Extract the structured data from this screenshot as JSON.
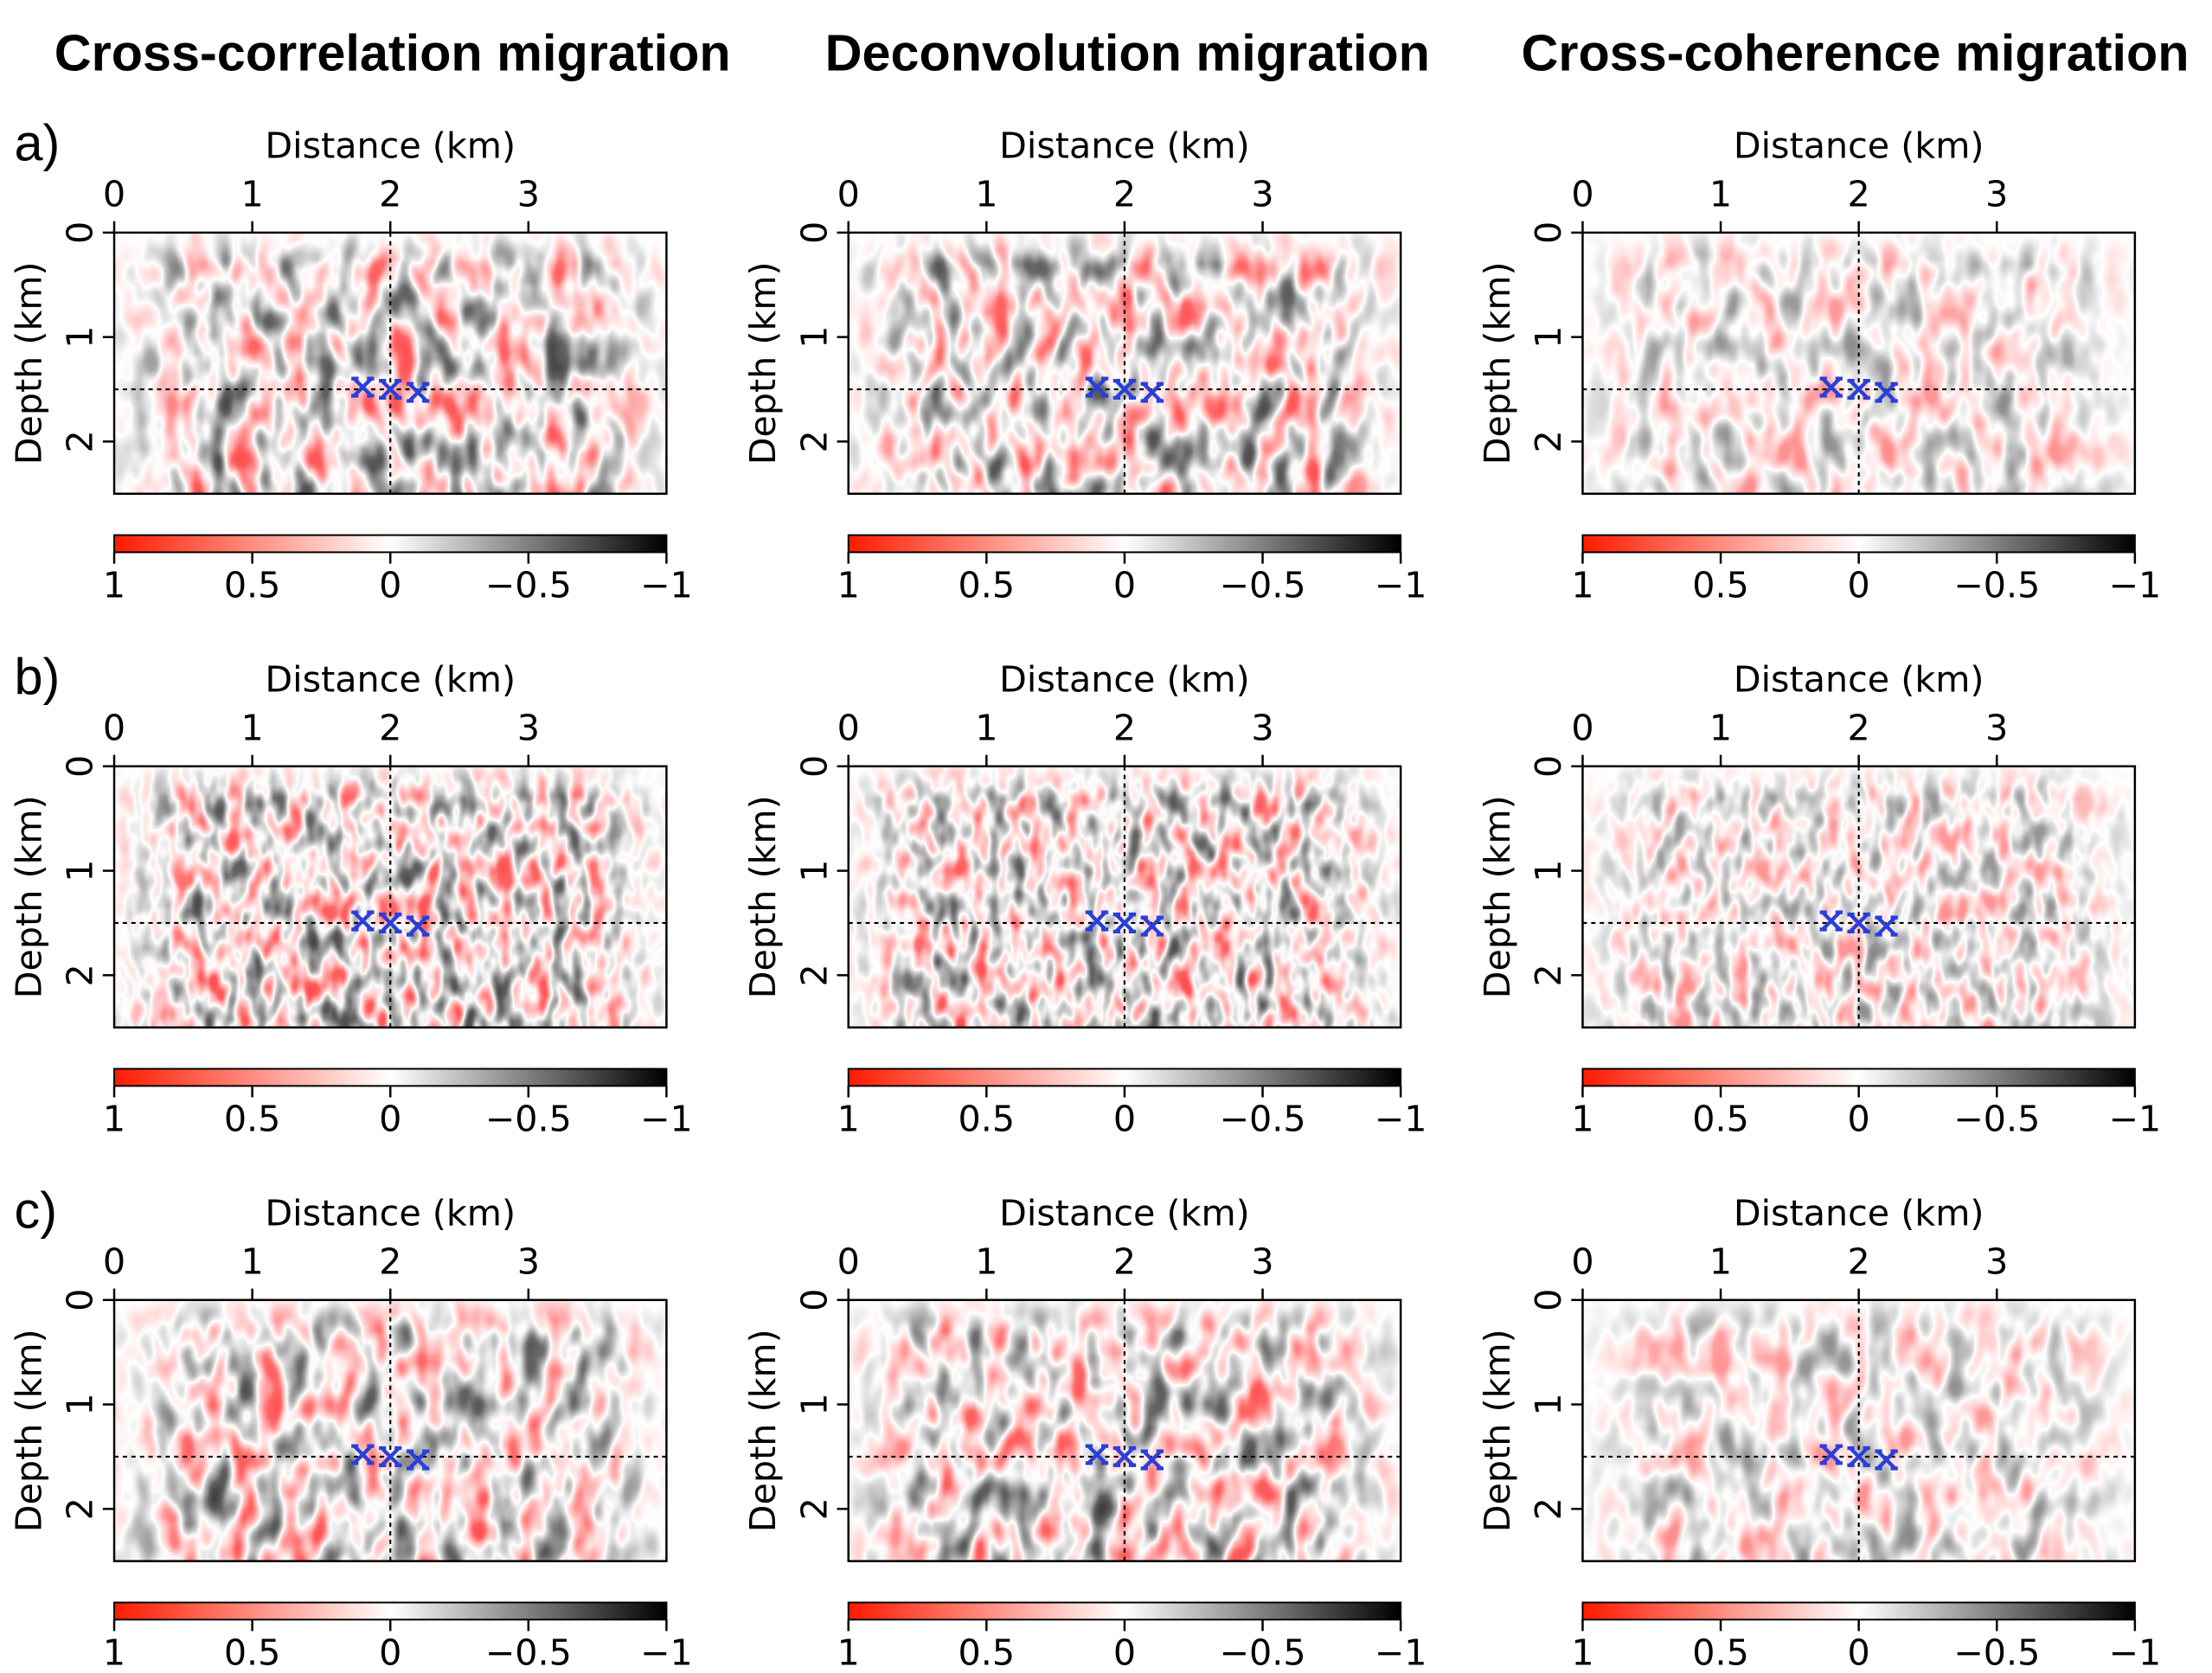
{
  "column_titles": [
    "Cross-correlation migration",
    "Deconvolution migration",
    "Cross-coherence migration"
  ],
  "row_labels": [
    "a)",
    "b)",
    "c)"
  ],
  "chart_data": [
    {
      "type": "heatmap",
      "xlabel": "Distance (km)",
      "ylabel": "Depth (km)",
      "xlim": [
        0,
        4
      ],
      "xticks": [
        0,
        1,
        2,
        3
      ],
      "ylim": [
        0,
        2.5
      ],
      "yticks": [
        0,
        1,
        2
      ],
      "guide_x": 2,
      "guide_y": 1.5,
      "markers": {
        "x": [
          1.8,
          2,
          2.2
        ],
        "y": [
          1.48,
          1.5,
          1.53
        ],
        "color": "#2a3fd8"
      },
      "clim": [
        1,
        -1
      ],
      "cticks": [
        1,
        0.5,
        0,
        {
          "value": -0.5,
          "label": "−0.5"
        },
        {
          "value": -1,
          "label": "−1"
        }
      ],
      "colormap": [
        "#ff1a00",
        "#ffffff",
        "#000000"
      ]
    },
    {
      "type": "heatmap",
      "xlabel": "Distance (km)",
      "ylabel": "Depth (km)",
      "xlim": [
        0,
        4
      ],
      "xticks": [
        0,
        1,
        2,
        3
      ],
      "ylim": [
        0,
        2.5
      ],
      "yticks": [
        0,
        1,
        2
      ],
      "guide_x": 2,
      "guide_y": 1.5,
      "markers": {
        "x": [
          1.8,
          2,
          2.2
        ],
        "y": [
          1.48,
          1.5,
          1.53
        ],
        "color": "#2a3fd8"
      },
      "clim": [
        1,
        -1
      ],
      "cticks": [
        1,
        0.5,
        0,
        {
          "value": -0.5,
          "label": "−0.5"
        },
        {
          "value": -1,
          "label": "−1"
        }
      ],
      "colormap": [
        "#ff1a00",
        "#ffffff",
        "#000000"
      ]
    },
    {
      "type": "heatmap",
      "xlabel": "Distance (km)",
      "ylabel": "Depth (km)",
      "xlim": [
        0,
        4
      ],
      "xticks": [
        0,
        1,
        2,
        3
      ],
      "ylim": [
        0,
        2.5
      ],
      "yticks": [
        0,
        1,
        2
      ],
      "guide_x": 2,
      "guide_y": 1.5,
      "markers": {
        "x": [
          1.8,
          2,
          2.2
        ],
        "y": [
          1.48,
          1.5,
          1.53
        ],
        "color": "#2a3fd8"
      },
      "clim": [
        1,
        -1
      ],
      "cticks": [
        1,
        0.5,
        0,
        {
          "value": -0.5,
          "label": "−0.5"
        },
        {
          "value": -1,
          "label": "−1"
        }
      ],
      "colormap": [
        "#ff1a00",
        "#ffffff",
        "#000000"
      ]
    },
    {
      "type": "heatmap",
      "xlabel": "Distance (km)",
      "ylabel": "Depth (km)",
      "xlim": [
        0,
        4
      ],
      "xticks": [
        0,
        1,
        2,
        3
      ],
      "ylim": [
        0,
        2.5
      ],
      "yticks": [
        0,
        1,
        2
      ],
      "guide_x": 2,
      "guide_y": 1.5,
      "markers": {
        "x": [
          1.8,
          2,
          2.2
        ],
        "y": [
          1.48,
          1.5,
          1.53
        ],
        "color": "#2a3fd8"
      },
      "clim": [
        1,
        -1
      ],
      "cticks": [
        1,
        0.5,
        0,
        {
          "value": -0.5,
          "label": "−0.5"
        },
        {
          "value": -1,
          "label": "−1"
        }
      ],
      "colormap": [
        "#ff1a00",
        "#ffffff",
        "#000000"
      ]
    },
    {
      "type": "heatmap",
      "xlabel": "Distance (km)",
      "ylabel": "Depth (km)",
      "xlim": [
        0,
        4
      ],
      "xticks": [
        0,
        1,
        2,
        3
      ],
      "ylim": [
        0,
        2.5
      ],
      "yticks": [
        0,
        1,
        2
      ],
      "guide_x": 2,
      "guide_y": 1.5,
      "markers": {
        "x": [
          1.8,
          2,
          2.2
        ],
        "y": [
          1.48,
          1.5,
          1.53
        ],
        "color": "#2a3fd8"
      },
      "clim": [
        1,
        -1
      ],
      "cticks": [
        1,
        0.5,
        0,
        {
          "value": -0.5,
          "label": "−0.5"
        },
        {
          "value": -1,
          "label": "−1"
        }
      ],
      "colormap": [
        "#ff1a00",
        "#ffffff",
        "#000000"
      ]
    },
    {
      "type": "heatmap",
      "xlabel": "Distance (km)",
      "ylabel": "Depth (km)",
      "xlim": [
        0,
        4
      ],
      "xticks": [
        0,
        1,
        2,
        3
      ],
      "ylim": [
        0,
        2.5
      ],
      "yticks": [
        0,
        1,
        2
      ],
      "guide_x": 2,
      "guide_y": 1.5,
      "markers": {
        "x": [
          1.8,
          2,
          2.2
        ],
        "y": [
          1.48,
          1.5,
          1.53
        ],
        "color": "#2a3fd8"
      },
      "clim": [
        1,
        -1
      ],
      "cticks": [
        1,
        0.5,
        0,
        {
          "value": -0.5,
          "label": "−0.5"
        },
        {
          "value": -1,
          "label": "−1"
        }
      ],
      "colormap": [
        "#ff1a00",
        "#ffffff",
        "#000000"
      ]
    },
    {
      "type": "heatmap",
      "xlabel": "Distance (km)",
      "ylabel": "Depth (km)",
      "xlim": [
        0,
        4
      ],
      "xticks": [
        0,
        1,
        2,
        3
      ],
      "ylim": [
        0,
        2.5
      ],
      "yticks": [
        0,
        1,
        2
      ],
      "guide_x": 2,
      "guide_y": 1.5,
      "markers": {
        "x": [
          1.8,
          2,
          2.2
        ],
        "y": [
          1.48,
          1.5,
          1.53
        ],
        "color": "#2a3fd8"
      },
      "clim": [
        1,
        -1
      ],
      "cticks": [
        1,
        0.5,
        0,
        {
          "value": -0.5,
          "label": "−0.5"
        },
        {
          "value": -1,
          "label": "−1"
        }
      ],
      "colormap": [
        "#ff1a00",
        "#ffffff",
        "#000000"
      ]
    },
    {
      "type": "heatmap",
      "xlabel": "Distance (km)",
      "ylabel": "Depth (km)",
      "xlim": [
        0,
        4
      ],
      "xticks": [
        0,
        1,
        2,
        3
      ],
      "ylim": [
        0,
        2.5
      ],
      "yticks": [
        0,
        1,
        2
      ],
      "guide_x": 2,
      "guide_y": 1.5,
      "markers": {
        "x": [
          1.8,
          2,
          2.2
        ],
        "y": [
          1.48,
          1.5,
          1.53
        ],
        "color": "#2a3fd8"
      },
      "clim": [
        1,
        -1
      ],
      "cticks": [
        1,
        0.5,
        0,
        {
          "value": -0.5,
          "label": "−0.5"
        },
        {
          "value": -1,
          "label": "−1"
        }
      ],
      "colormap": [
        "#ff1a00",
        "#ffffff",
        "#000000"
      ]
    },
    {
      "type": "heatmap",
      "xlabel": "Distance (km)",
      "ylabel": "Depth (km)",
      "xlim": [
        0,
        4
      ],
      "xticks": [
        0,
        1,
        2,
        3
      ],
      "ylim": [
        0,
        2.5
      ],
      "yticks": [
        0,
        1,
        2
      ],
      "guide_x": 2,
      "guide_y": 1.5,
      "markers": {
        "x": [
          1.8,
          2,
          2.2
        ],
        "y": [
          1.48,
          1.5,
          1.53
        ],
        "color": "#2a3fd8"
      },
      "clim": [
        1,
        -1
      ],
      "cticks": [
        1,
        0.5,
        0,
        {
          "value": -0.5,
          "label": "−0.5"
        },
        {
          "value": -1,
          "label": "−1"
        }
      ],
      "colormap": [
        "#ff1a00",
        "#ffffff",
        "#000000"
      ]
    }
  ]
}
